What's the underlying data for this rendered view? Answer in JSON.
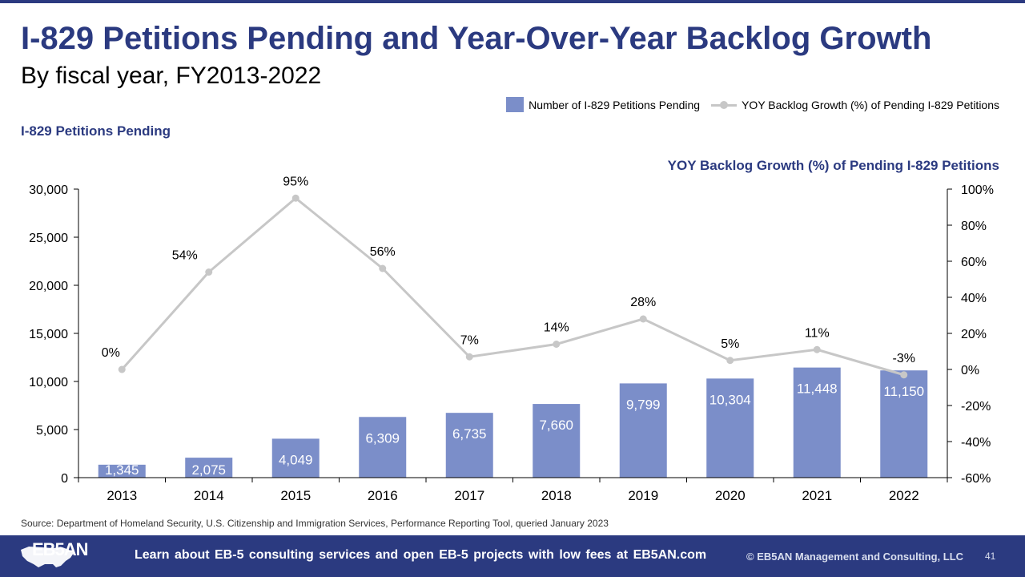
{
  "slide": {
    "title": "I-829 Petitions Pending and Year-Over-Year Backlog Growth",
    "subtitle": "By fiscal year, FY2013-2022",
    "left_axis_title": "I-829 Petitions Pending",
    "right_axis_title": "YOY Backlog Growth (%) of Pending I-829 Petitions",
    "source": "Source: Department of Homeland Security, U.S. Citizenship and Immigration Services, Performance Reporting Tool, queried January 2023"
  },
  "legend": {
    "bar_label": "Number of I-829 Petitions Pending",
    "line_label": "YOY Backlog Growth (%) of Pending I-829 Petitions"
  },
  "footer": {
    "logo_text": "EB5AN",
    "tagline": "Learn about EB-5 consulting services and open EB-5 projects with low fees at EB5AN.com",
    "copyright": "© EB5AN Management and Consulting, LLC",
    "page_number": "41"
  },
  "colors": {
    "brand": "#2b3a80",
    "bar": "#7b8ec9",
    "line": "#c7c7c7"
  },
  "chart_data": {
    "type": "bar",
    "categories": [
      "2013",
      "2014",
      "2015",
      "2016",
      "2017",
      "2018",
      "2019",
      "2020",
      "2021",
      "2022"
    ],
    "series": [
      {
        "name": "Number of I-829 Petitions Pending",
        "type": "bar",
        "axis": "left",
        "values": [
          1345,
          2075,
          4049,
          6309,
          6735,
          7660,
          9799,
          10304,
          11448,
          11150
        ],
        "labels": [
          "1,345",
          "2,075",
          "4,049",
          "6,309",
          "6,735",
          "7,660",
          "9,799",
          "10,304",
          "11,448",
          "11,150"
        ]
      },
      {
        "name": "YOY Backlog Growth (%) of Pending I-829 Petitions",
        "type": "line",
        "axis": "right",
        "values": [
          0,
          54,
          95,
          56,
          7,
          14,
          28,
          5,
          11,
          -3
        ],
        "labels": [
          "0%",
          "54%",
          "95%",
          "56%",
          "7%",
          "14%",
          "28%",
          "5%",
          "11%",
          "-3%"
        ]
      }
    ],
    "left_axis": {
      "title": "I-829 Petitions Pending",
      "ylim": [
        0,
        30000
      ],
      "ticks": [
        0,
        5000,
        10000,
        15000,
        20000,
        25000,
        30000
      ],
      "tick_labels": [
        "0",
        "5,000",
        "10,000",
        "15,000",
        "20,000",
        "25,000",
        "30,000"
      ]
    },
    "right_axis": {
      "title": "YOY Backlog Growth (%) of Pending I-829 Petitions",
      "ylim": [
        -60,
        100
      ],
      "ticks": [
        -60,
        -40,
        -20,
        0,
        20,
        40,
        60,
        80,
        100
      ],
      "tick_labels": [
        "-60%",
        "-40%",
        "-20%",
        "0%",
        "20%",
        "40%",
        "60%",
        "80%",
        "100%"
      ]
    },
    "grid": false,
    "legend_position": "top-right"
  }
}
